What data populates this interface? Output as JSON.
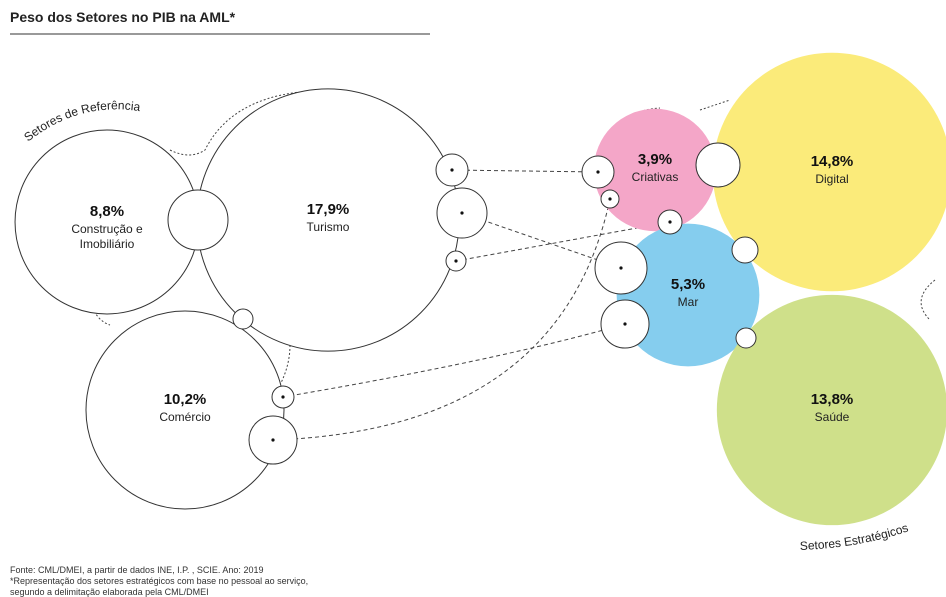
{
  "chart_data": {
    "type": "bubble",
    "title": "Peso dos Setores no PIB na AML*",
    "series": [
      {
        "name": "Setores de Referência",
        "color": "#ffffff",
        "categories": [
          "Construção e Imobiliário",
          "Turismo",
          "Comércio"
        ],
        "values": [
          8.8,
          17.9,
          10.2
        ],
        "value_labels": [
          "8,8%",
          "17,9%",
          "10,2%"
        ]
      },
      {
        "name": "Setores Estratégicos",
        "colors": [
          "#f4a6c8",
          "#fbeb7a",
          "#85cdee",
          "#cfe08a"
        ],
        "categories": [
          "Criativas",
          "Digital",
          "Mar",
          "Saúde"
        ],
        "values": [
          3.9,
          14.8,
          5.3,
          13.8
        ],
        "value_labels": [
          "3,9%",
          "14,8%",
          "5,3%",
          "13,8%"
        ]
      }
    ],
    "notes": [
      "Fonte: CML/DMEI, a partir de dados INE, I.P. , SCIE.  Ano: 2019",
      "*Representação dos setores estratégicos com base no pessoal ao serviço,",
      "segundo a delimitação elaborada pela CML/DMEI"
    ]
  }
}
